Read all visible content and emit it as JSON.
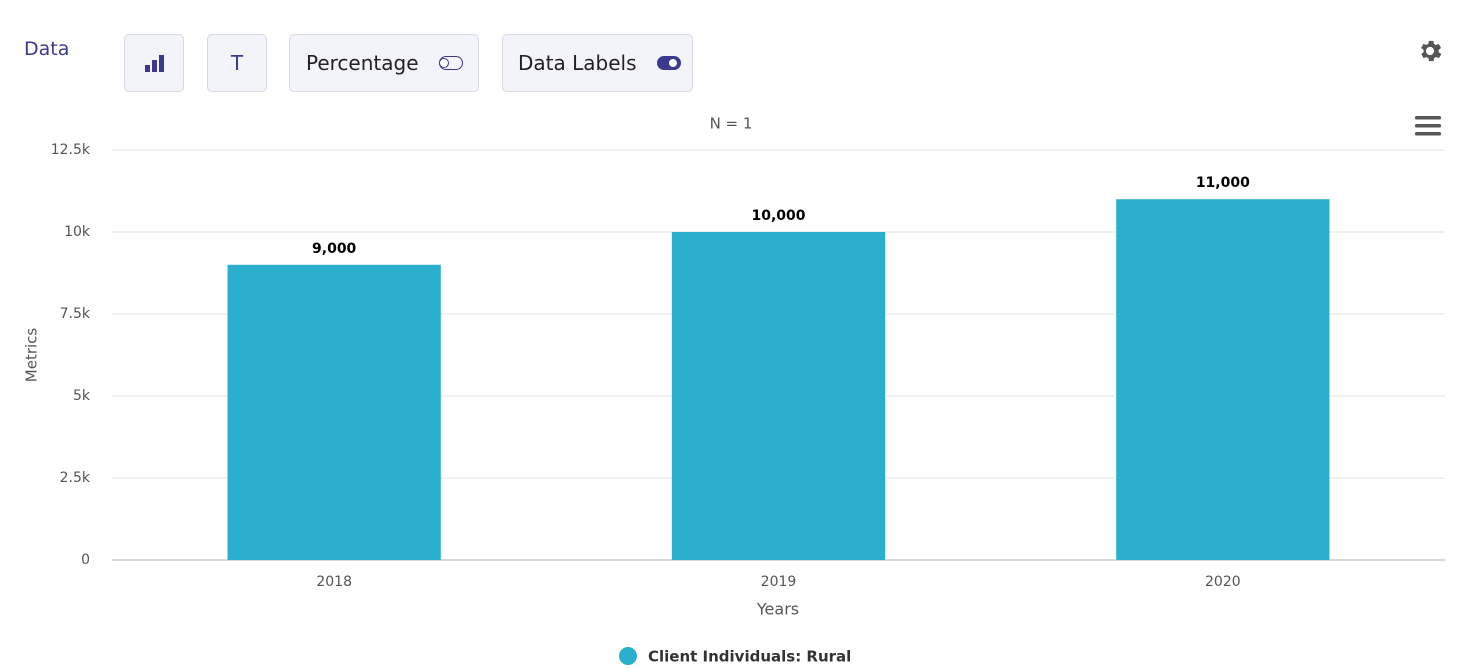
{
  "toolbar": {
    "title": "Data",
    "buttons": [
      {
        "label": "T"
      },
      {
        "label": "Percentage",
        "on": false
      },
      {
        "label": "Data Labels",
        "on": true
      }
    ]
  },
  "chart_data": {
    "type": "bar",
    "title": "N = 1",
    "x_label": "Years",
    "y_label": "Metrics",
    "categories": [
      "2018",
      "2019",
      "2020"
    ],
    "series": [
      {
        "name": "Client Individuals: Rural",
        "color": "#2aafcf",
        "values": [
          9000,
          10000,
          11000
        ],
        "value_labels": [
          "9,000",
          "10,000",
          "11,000"
        ]
      }
    ],
    "ylim": [
      0,
      12500
    ],
    "yticks": [
      0,
      {
        "value": 2500,
        "label": "2.5k"
      },
      {
        "value": 5000,
        "label": "5k"
      },
      {
        "value": 7500,
        "label": "7.5k"
      },
      {
        "value": 10000,
        "label": "10k"
      },
      {
        "value": 12500,
        "label": "12.5k"
      }
    ],
    "grid": true
  }
}
